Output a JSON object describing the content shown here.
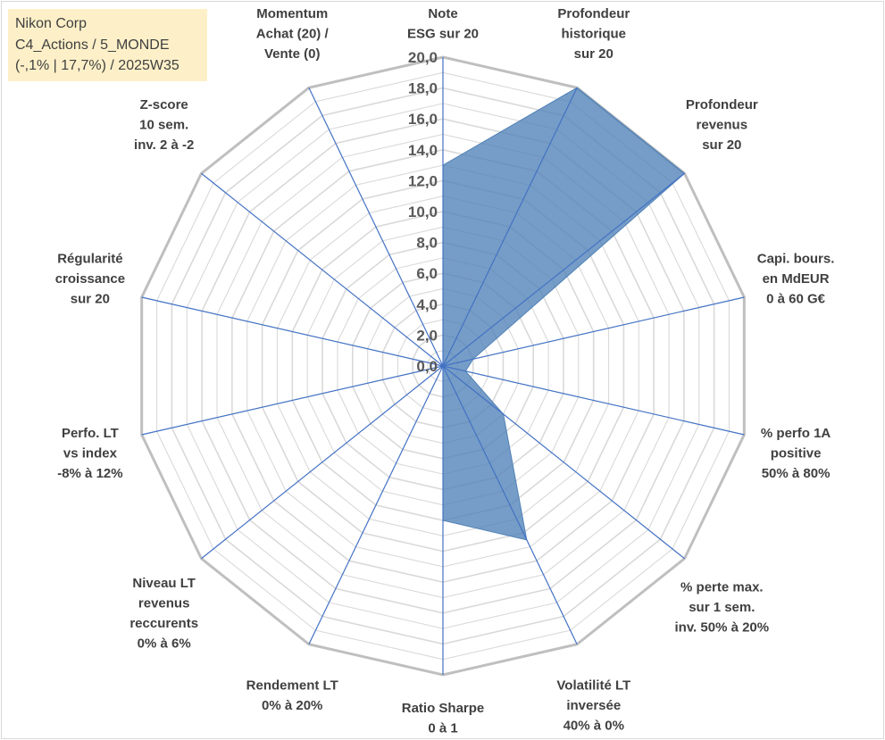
{
  "header": {
    "lines": [
      "Nikon Corp",
      "C4_Actions / 5_MONDE",
      "(-,1% | 17,7%) / 2025W35"
    ]
  },
  "chart_data": {
    "type": "radar",
    "title": "",
    "rmax": 20,
    "rmin": 0,
    "tick_step": 1,
    "tick_label_step": 2,
    "tick_labels": [
      "0,0",
      "2,0",
      "4,0",
      "6,0",
      "8,0",
      "10,0",
      "12,0",
      "14,0",
      "16,0",
      "18,0",
      "20,0"
    ],
    "grid": true,
    "colors": {
      "fill": "#4f81b7",
      "fill_opacity": 0.78,
      "spoke": "#4472c4",
      "grid": "#d9d9d9",
      "outer": "#bfbfbf"
    },
    "axes": [
      {
        "label": [
          "Note",
          "ESG sur 20"
        ],
        "value": 13.0
      },
      {
        "label": [
          "Profondeur",
          "historique",
          "sur 20"
        ],
        "value": 20.0
      },
      {
        "label": [
          "Profondeur",
          "revenus",
          "sur 20"
        ],
        "value": 20.0
      },
      {
        "label": [
          "Capi. bours.",
          "en MdEUR",
          "0 à 60 G€"
        ],
        "value": 2.0
      },
      {
        "label": [
          "% perfo 1A",
          "positive",
          "50% à 80%"
        ],
        "value": 1.5
      },
      {
        "label": [
          "% perte max.",
          "sur 1 sem.",
          "inv. 50% à 20%"
        ],
        "value": 5.0
      },
      {
        "label": [
          "Volatilité LT",
          "inversée",
          "40% à 0%"
        ],
        "value": 12.5
      },
      {
        "label": [
          "Ratio Sharpe",
          "0 à 1"
        ],
        "value": 10.0
      },
      {
        "label": [
          "Rendement LT",
          "0% à 20%"
        ],
        "value": 0.0
      },
      {
        "label": [
          "Niveau LT",
          "revenus",
          "reccurents",
          "0% à 6%"
        ],
        "value": 0.0
      },
      {
        "label": [
          "Perfo. LT",
          "vs index",
          "-8% à 12%"
        ],
        "value": 0.0
      },
      {
        "label": [
          "Régularité",
          "croissance",
          "sur 20"
        ],
        "value": 0.0
      },
      {
        "label": [
          "Z-score",
          "10 sem.",
          "inv. 2 à -2"
        ],
        "value": 0.0
      },
      {
        "label": [
          "Momentum",
          "Achat (20) /",
          "Vente (0)"
        ],
        "value": 0.0
      }
    ]
  }
}
